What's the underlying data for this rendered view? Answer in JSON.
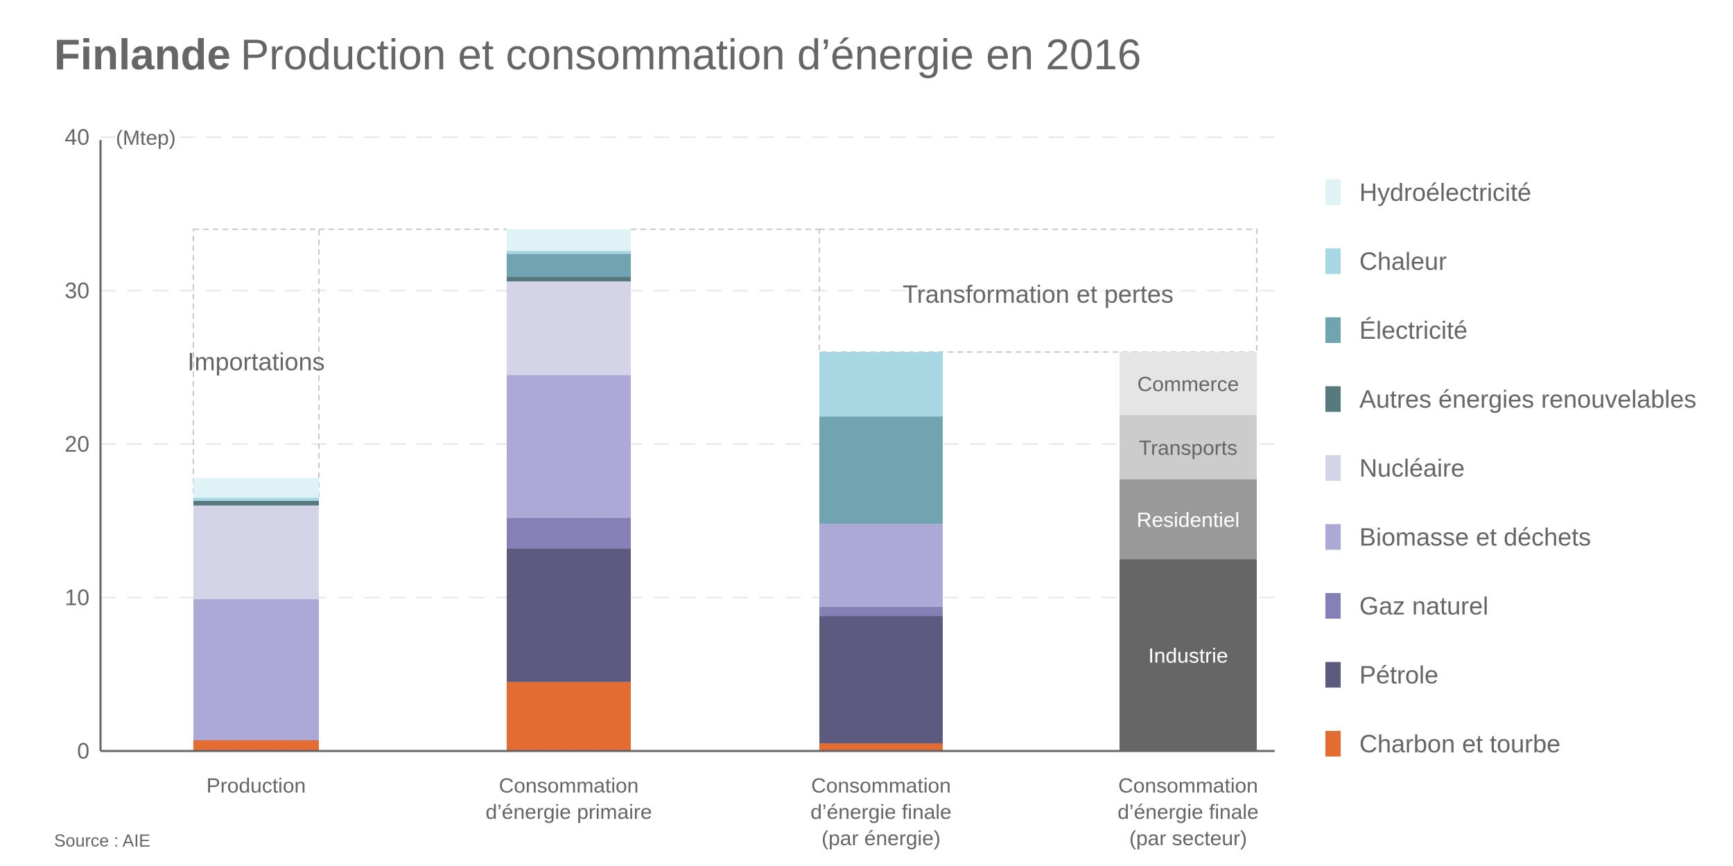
{
  "header": {
    "title_bold": "Finlande",
    "title_rest": "Production et consommation d’énergie en 2016"
  },
  "footer": {
    "source": "Source : AIE"
  },
  "chart_data": {
    "type": "bar",
    "stacked": true,
    "title": "Finlande Production et consommation d’énergie en 2016",
    "ylabel": "(Mtep)",
    "xlabel": "",
    "ylim": [
      0,
      40
    ],
    "yticks": [
      0,
      10,
      20,
      30,
      40
    ],
    "grid": true,
    "legend_position": "right",
    "categories": [
      [
        "Production"
      ],
      [
        "Consommation",
        "d’énergie primaire"
      ],
      [
        "Consommation",
        "d’énergie finale",
        "(par énergie)"
      ],
      [
        "Consommation",
        "d’énergie finale",
        "(par secteur)"
      ]
    ],
    "series": [
      {
        "name": "Charbon et tourbe",
        "color": "#e36c33",
        "values": [
          0.7,
          4.5,
          0.5,
          0
        ]
      },
      {
        "name": "Pétrole",
        "color": "#5d5a80",
        "values": [
          0,
          8.7,
          8.3,
          0
        ]
      },
      {
        "name": "Gaz naturel",
        "color": "#8580b6",
        "values": [
          0,
          2.0,
          0.6,
          0
        ]
      },
      {
        "name": "Biomasse et déchets",
        "color": "#aca9d7",
        "values": [
          9.2,
          9.3,
          5.4,
          0
        ]
      },
      {
        "name": "Nucléaire",
        "color": "#d4d4e9",
        "values": [
          6.1,
          6.1,
          0,
          0
        ]
      },
      {
        "name": "Autres énergies renouvelables",
        "color": "#55797d",
        "values": [
          0.3,
          0.3,
          0,
          0
        ]
      },
      {
        "name": "Électricité",
        "color": "#70a4b1",
        "values": [
          0,
          1.5,
          7.0,
          0
        ]
      },
      {
        "name": "Chaleur",
        "color": "#a6d7e2",
        "values": [
          0.2,
          0.2,
          4.2,
          0
        ]
      },
      {
        "name": "Hydroélectricité",
        "color": "#dff2f5",
        "values": [
          1.3,
          1.4,
          0,
          0
        ]
      }
    ],
    "sector_series": [
      {
        "name": "Industrie",
        "color": "#666666",
        "text_color": "#ffffff",
        "value": 12.5
      },
      {
        "name": "Residentiel",
        "color": "#999999",
        "text_color": "#ffffff",
        "value": 5.2
      },
      {
        "name": "Transports",
        "color": "#cccccc",
        "text_color": "#666666",
        "value": 4.2
      },
      {
        "name": "Commerce",
        "color": "#e5e5e5",
        "text_color": "#666666",
        "value": 4.1
      }
    ],
    "annotations": [
      {
        "text": "Importations",
        "between": [
          0,
          1
        ],
        "from": 16.5,
        "to": 34.0
      },
      {
        "text": "Transformation et pertes",
        "between": [
          2,
          3
        ],
        "from": 26.0,
        "to": 34.0
      }
    ],
    "legend_order": [
      "Hydroélectricité",
      "Chaleur",
      "Électricité",
      "Autres énergies renouvelables",
      "Nucléaire",
      "Biomasse et déchets",
      "Gaz naturel",
      "Pétrole",
      "Charbon et tourbe"
    ]
  }
}
